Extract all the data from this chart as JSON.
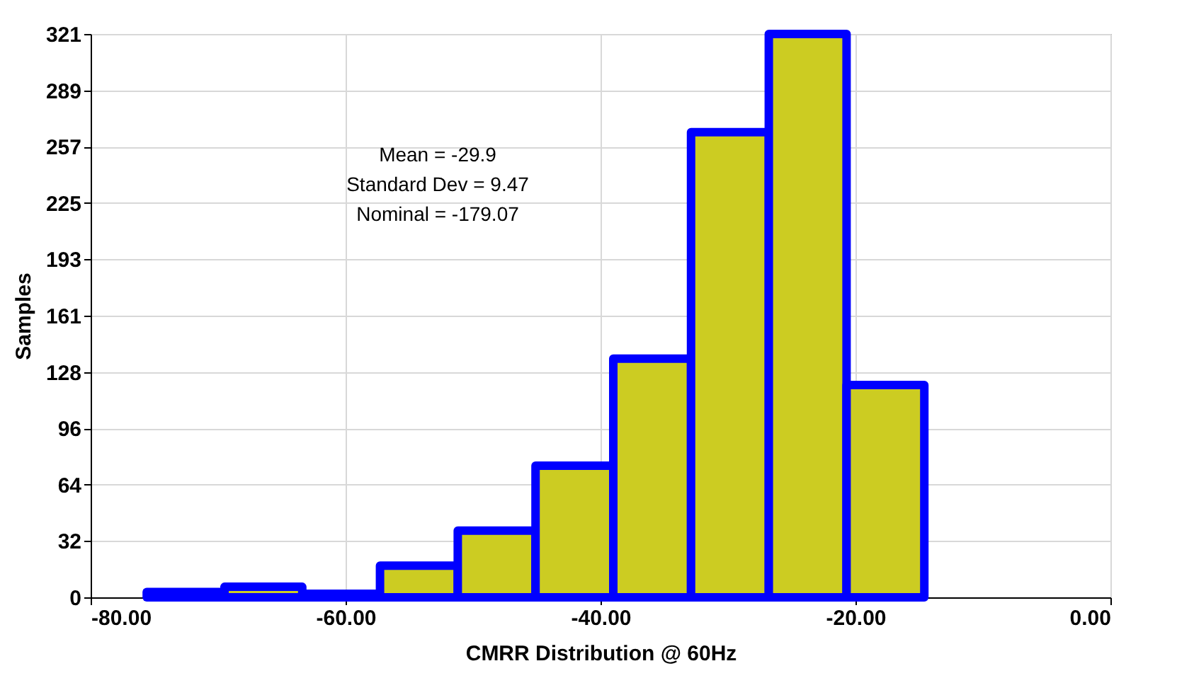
{
  "chart_data": {
    "type": "histogram",
    "xlabel": "CMRR Distribution @ 60Hz",
    "ylabel": "Samples",
    "bins": [
      -75.6,
      -69.5,
      -63.4,
      -57.3,
      -51.2,
      -45.1,
      -39.0,
      -32.9,
      -26.8,
      -20.7,
      -14.6
    ],
    "values": [
      3,
      6,
      2,
      18,
      38,
      75,
      136,
      265,
      321,
      121
    ],
    "color": "#cccc22",
    "xlim": [
      -80,
      0
    ],
    "xticks": [
      {
        "value": -80,
        "label": "-80.00"
      },
      {
        "value": -60,
        "label": "-60.00"
      },
      {
        "value": -40,
        "label": "-40.00"
      },
      {
        "value": -20,
        "label": "-20.00"
      },
      {
        "value": 0,
        "label": "0.00"
      }
    ],
    "ylim": [
      0,
      321
    ],
    "yticks": [
      0,
      {
        "value": 32.1,
        "label": "32"
      },
      {
        "value": 64.2,
        "label": "64"
      },
      {
        "value": 96.3,
        "label": "96"
      },
      {
        "value": 128.4,
        "label": "128"
      },
      {
        "value": 160.5,
        "label": "161"
      },
      {
        "value": 192.6,
        "label": "193"
      },
      {
        "value": 224.7,
        "label": "225"
      },
      {
        "value": 256.8,
        "label": "257"
      },
      {
        "value": 288.9,
        "label": "289"
      },
      321
    ],
    "grid": true,
    "annotations": [
      "Mean = -29.9",
      "Standard Dev = 9.47",
      "Nominal = -179.07"
    ]
  }
}
